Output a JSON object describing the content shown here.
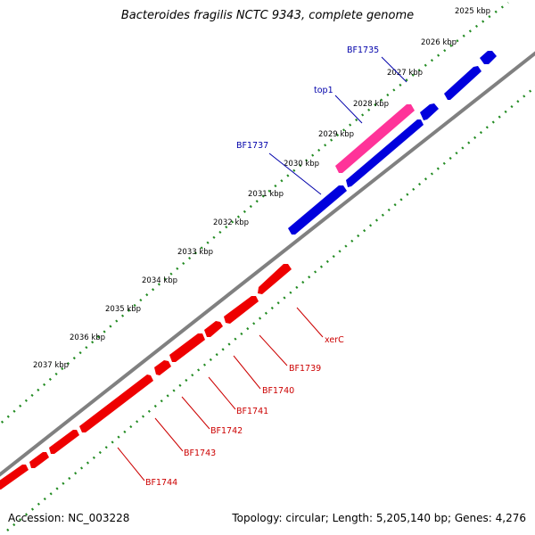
{
  "title": "Bacteroides fragilis NCTC 9343, complete genome",
  "footer": {
    "accession": "Accession: NC_003228",
    "summary": "Topology: circular; Length: 5,205,140 bp; Genes: 4,276"
  },
  "scale_labels": [
    "2025 kbp",
    "2026 kbp",
    "2027 kbp",
    "2028 kbp",
    "2029 kbp",
    "2030 kbp",
    "2031 kbp",
    "2032 kbp",
    "2033 kbp",
    "2034 kbp",
    "2035 kbp",
    "2036 kbp",
    "2037 kbp"
  ],
  "forward_labels": [
    "BF1735",
    "top1",
    "BF1737"
  ],
  "reverse_labels": [
    "xerC",
    "BF1739",
    "BF1740",
    "BF1741",
    "BF1742",
    "BF1743",
    "BF1744"
  ],
  "colors": {
    "forward_gene": "#0000dd",
    "reverse_gene": "#ee0000",
    "highlight_gene": "#ff3399",
    "backbone": "#808080",
    "scale_dots": "#228b22",
    "forward_label": "#0000aa",
    "reverse_label": "#cc0000"
  }
}
